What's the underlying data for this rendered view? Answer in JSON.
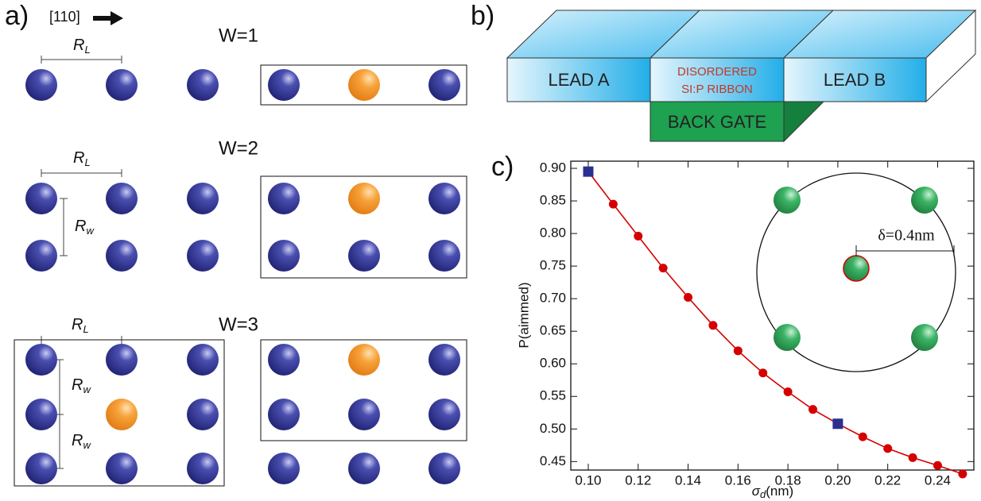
{
  "panel_a": {
    "label": "a)",
    "direction": "[110]",
    "rows": [
      {
        "title": "W=1",
        "r_l": {
          "symbol": "R",
          "subscript": "L"
        }
      },
      {
        "title": "W=2",
        "r_l": {
          "symbol": "R",
          "subscript": "L"
        },
        "r_w": [
          {
            "symbol": "R",
            "subscript": "w"
          }
        ]
      },
      {
        "title": "W=3",
        "r_l": {
          "symbol": "R",
          "subscript": "L"
        },
        "r_w": [
          {
            "symbol": "R",
            "subscript": "w"
          },
          {
            "symbol": "R",
            "subscript": "w"
          }
        ]
      }
    ]
  },
  "panel_b": {
    "label": "b)",
    "lead_a": "LEAD A",
    "ribbon": [
      "DISORDERED",
      "SI:P RIBBON"
    ],
    "lead_b": "LEAD B",
    "gate": "BACK GATE"
  },
  "chart_data": {
    "type": "line",
    "panel_label": "c)",
    "x_label": {
      "symbol": "σ",
      "subscript": "d",
      "unit": "(nm)"
    },
    "y_label": "P(aimmed)",
    "x": [
      0.1,
      0.11,
      0.12,
      0.13,
      0.14,
      0.15,
      0.16,
      0.17,
      0.18,
      0.19,
      0.2,
      0.21,
      0.22,
      0.23,
      0.24,
      0.25
    ],
    "series": [
      {
        "color": "#d40000",
        "marker": "circle",
        "values": [
          0.895,
          0.845,
          0.796,
          0.747,
          0.702,
          0.659,
          0.62,
          0.586,
          0.557,
          0.53,
          0.508,
          0.488,
          0.47,
          0.456,
          0.444,
          0.431
        ]
      },
      {
        "color": "#2b2f8f",
        "marker": "square",
        "x": [
          0.1,
          0.2
        ],
        "values": [
          0.895,
          0.508
        ]
      }
    ],
    "xlim": [
      0.093,
      0.2545
    ],
    "ylim": [
      0.437,
      0.911
    ],
    "xticks": [
      {
        "value": 0.1,
        "label": "0.10"
      },
      0.12,
      0.14,
      0.16,
      0.18,
      {
        "value": 0.2,
        "label": "0.20"
      },
      0.22,
      0.24
    ],
    "yticks": [
      0.45,
      {
        "value": 0.5,
        "label": "0.50"
      },
      0.55,
      {
        "value": 0.6,
        "label": "0.60"
      },
      0.65,
      {
        "value": 0.7,
        "label": "0.70"
      },
      0.75,
      {
        "value": 0.8,
        "label": "0.80"
      },
      0.85,
      {
        "value": 0.9,
        "label": "0.90"
      }
    ],
    "annotation": "δ=0.4nm"
  }
}
